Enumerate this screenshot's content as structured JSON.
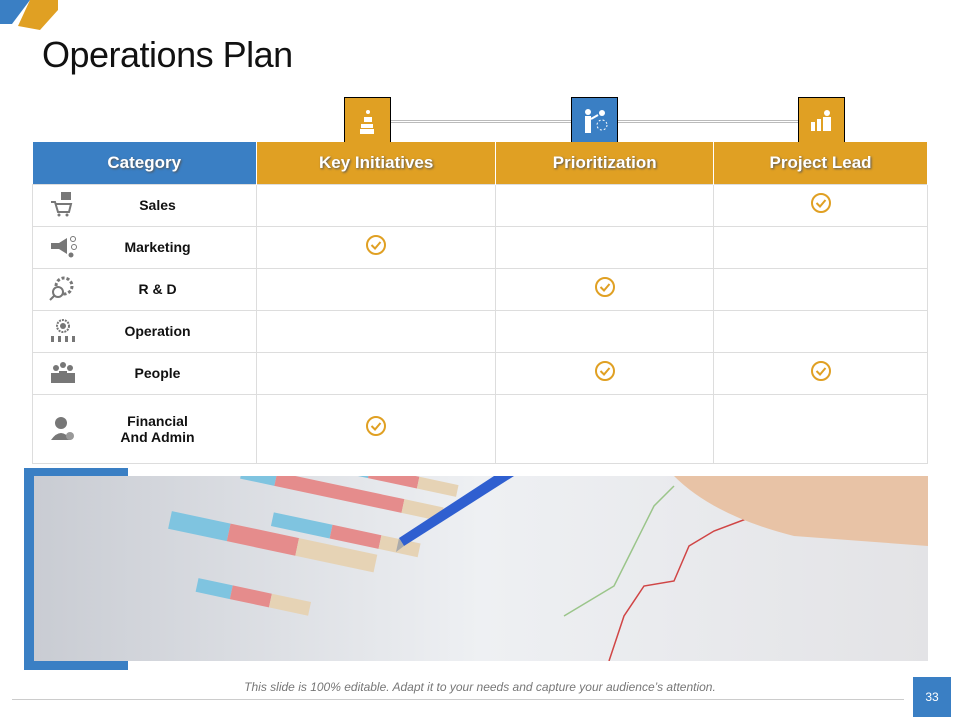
{
  "title": "Operations Plan",
  "colors": {
    "blue": "#3a7fc4",
    "gold": "#e0a023",
    "check": "#e0a023"
  },
  "header_icons": [
    "initiatives-icon",
    "presentation-icon",
    "team-icon"
  ],
  "table": {
    "headers": [
      "Category",
      "Key Initiatives",
      "Prioritization",
      "Project Lead"
    ],
    "rows": [
      {
        "label": "Sales",
        "icon": "shopping-cart-icon",
        "checks": [
          false,
          false,
          true
        ]
      },
      {
        "label": "Marketing",
        "icon": "megaphone-icon",
        "checks": [
          true,
          false,
          false
        ]
      },
      {
        "label": "R & D",
        "icon": "gear-search-icon",
        "checks": [
          false,
          true,
          false
        ]
      },
      {
        "label": "Operation",
        "icon": "operation-gear-icon",
        "checks": [
          false,
          false,
          false
        ]
      },
      {
        "label": "People",
        "icon": "people-group-icon",
        "checks": [
          false,
          true,
          true
        ]
      },
      {
        "label": "Financial\nAnd Admin",
        "label_lines": [
          "Financial",
          "And Admin"
        ],
        "icon": "admin-person-icon",
        "checks": [
          true,
          false,
          false
        ]
      }
    ]
  },
  "footer": "This slide is 100% editable. Adapt it to your needs and capture your audience’s attention.",
  "page_number": "33"
}
